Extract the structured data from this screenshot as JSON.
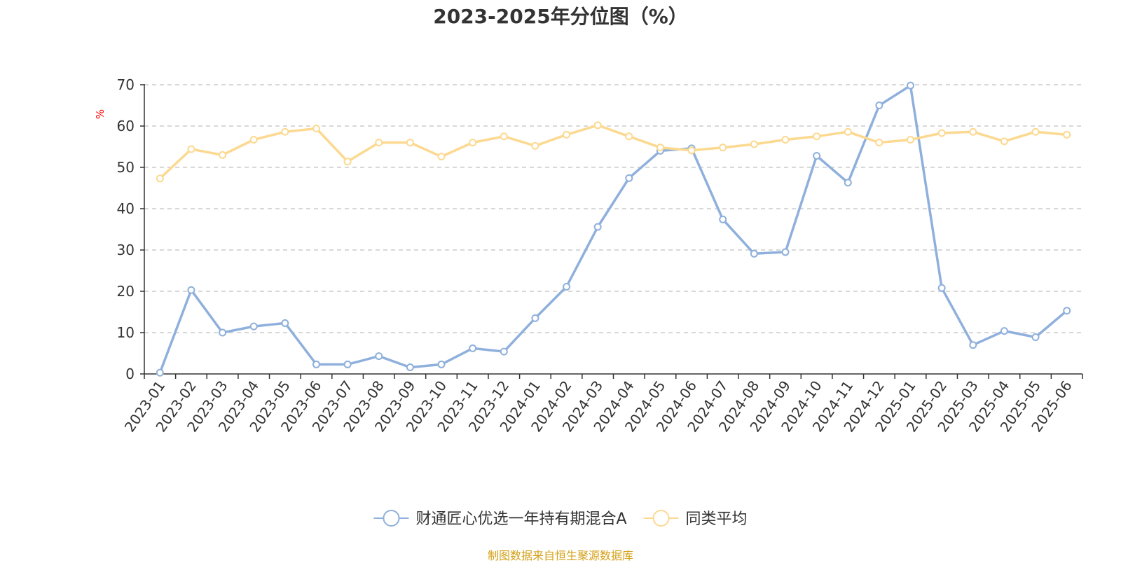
{
  "chart_data": {
    "type": "line",
    "title": "2023-2025年分位图（%）",
    "ylabel": "%",
    "xlabel": "",
    "ylim": [
      0,
      70
    ],
    "yticks": [
      0,
      10,
      20,
      30,
      40,
      50,
      60,
      70
    ],
    "grid": "horizontal-dashed",
    "legend_position": "bottom-center",
    "categories": [
      "2023-01",
      "2023-02",
      "2023-03",
      "2023-04",
      "2023-05",
      "2023-06",
      "2023-07",
      "2023-08",
      "2023-09",
      "2023-10",
      "2023-11",
      "2023-12",
      "2024-01",
      "2024-02",
      "2024-03",
      "2024-04",
      "2024-05",
      "2024-06",
      "2024-07",
      "2024-08",
      "2024-09",
      "2024-10",
      "2024-11",
      "2024-12",
      "2025-01",
      "2025-02",
      "2025-03",
      "2025-04",
      "2025-05",
      "2025-06"
    ],
    "series": [
      {
        "name": "财通匠心优选一年持有期混合A",
        "color": "#8fb0dc",
        "values": [
          0.3,
          20.3,
          10.0,
          11.5,
          12.3,
          2.3,
          2.3,
          4.3,
          1.6,
          2.3,
          6.2,
          5.4,
          13.5,
          21.1,
          35.6,
          47.4,
          54.0,
          54.6,
          37.4,
          29.1,
          29.5,
          52.8,
          46.3,
          65.0,
          69.8,
          20.8,
          7.0,
          10.4,
          8.9,
          15.3
        ]
      },
      {
        "name": "同类平均",
        "color": "#fcd990",
        "values": [
          47.3,
          54.4,
          53.0,
          56.7,
          58.6,
          59.4,
          51.4,
          56.0,
          56.0,
          52.6,
          56.0,
          57.5,
          55.2,
          57.9,
          60.2,
          57.5,
          54.8,
          54.1,
          54.8,
          55.6,
          56.7,
          57.5,
          58.6,
          56.0,
          56.7,
          58.3,
          58.6,
          56.3,
          58.6,
          57.9
        ]
      }
    ],
    "source_note": "制图数据来自恒生聚源数据库"
  }
}
